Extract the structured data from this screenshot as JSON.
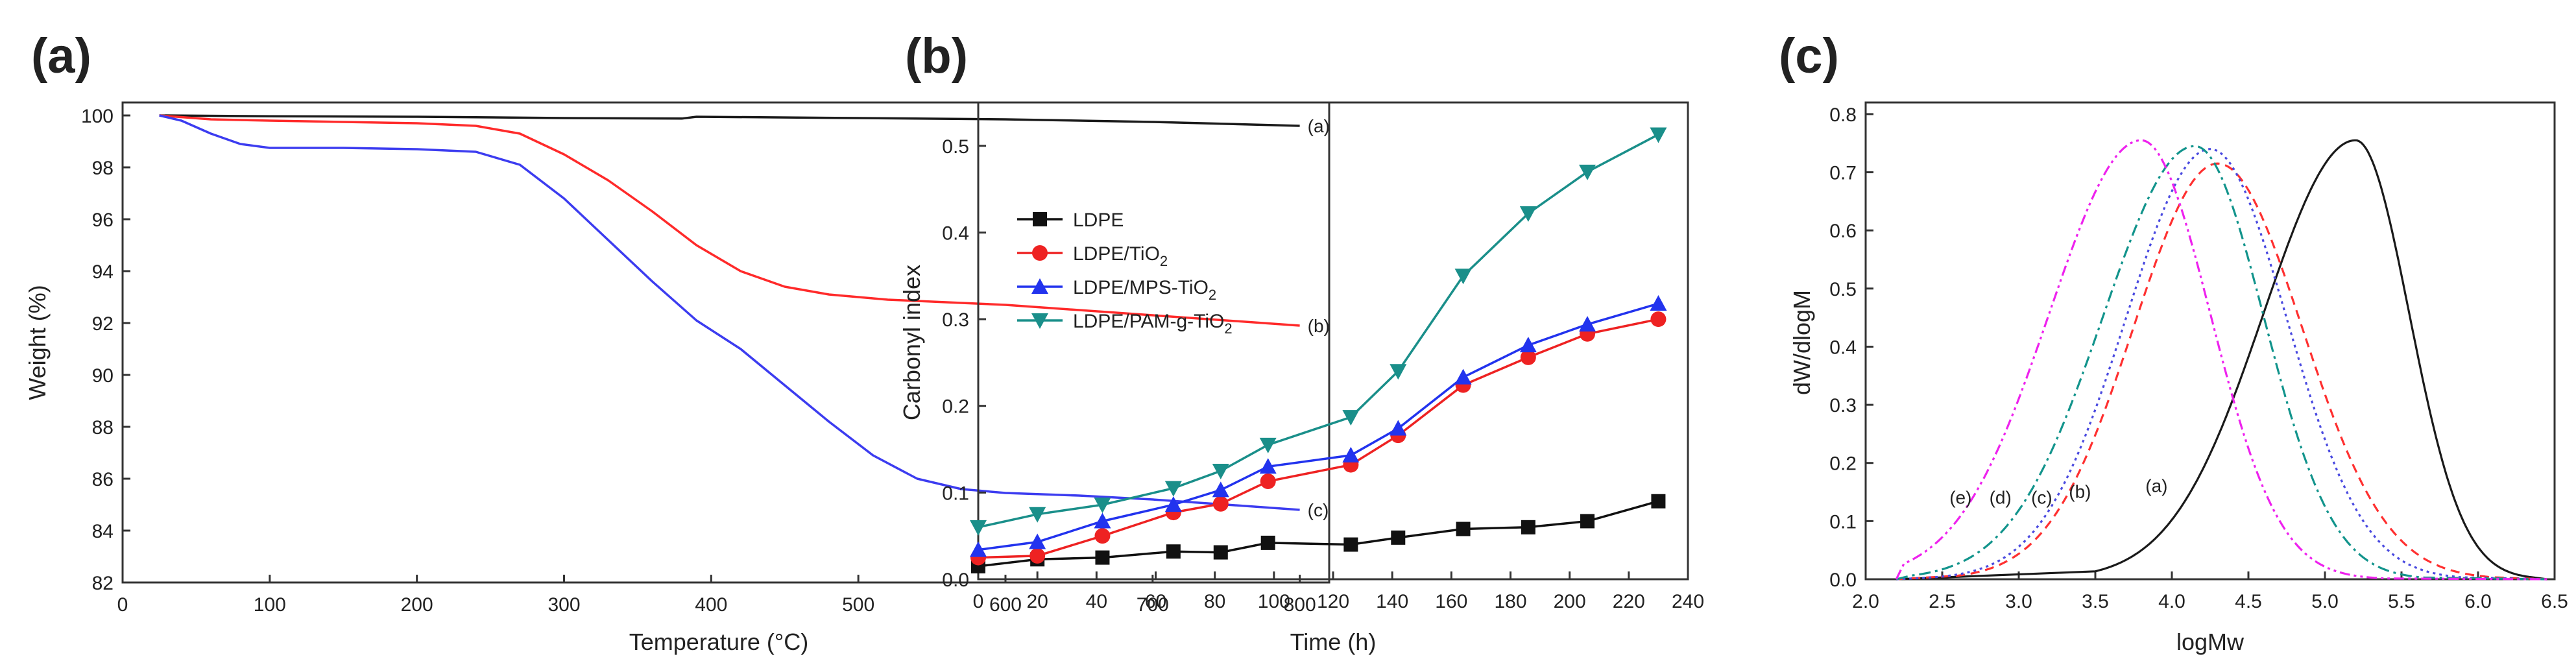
{
  "chart_data": [
    {
      "id": "a",
      "type": "line",
      "panel_label": "(a)",
      "xlabel": "Temperature (°C)",
      "ylabel": "Weight (%)",
      "xlim": [
        0,
        820
      ],
      "ylim": [
        82,
        100.5
      ],
      "xticks": [
        0,
        100,
        200,
        300,
        400,
        500,
        600,
        700,
        800
      ],
      "yticks": [
        82,
        84,
        86,
        88,
        90,
        92,
        94,
        96,
        98,
        100
      ],
      "series": [
        {
          "name": "(a)",
          "color": "#1a1a1a",
          "x": [
            25,
            100,
            200,
            300,
            380,
            390,
            500,
            600,
            700,
            800
          ],
          "y": [
            100,
            99.97,
            99.95,
            99.9,
            99.88,
            99.95,
            99.9,
            99.85,
            99.75,
            99.6
          ]
        },
        {
          "name": "(b)",
          "color": "#ff2a2a",
          "x": [
            25,
            60,
            100,
            150,
            200,
            240,
            270,
            300,
            330,
            360,
            390,
            420,
            450,
            480,
            520,
            560,
            600,
            700,
            800
          ],
          "y": [
            100,
            99.85,
            99.8,
            99.75,
            99.7,
            99.6,
            99.3,
            98.5,
            97.5,
            96.3,
            95.0,
            94.0,
            93.4,
            93.1,
            92.9,
            92.8,
            92.7,
            92.3,
            91.9
          ]
        },
        {
          "name": "(c)",
          "color": "#3c3cf0",
          "x": [
            25,
            40,
            60,
            80,
            100,
            150,
            200,
            240,
            270,
            300,
            330,
            360,
            390,
            420,
            450,
            480,
            510,
            540,
            570,
            600,
            650,
            700,
            750,
            800
          ],
          "y": [
            100,
            99.8,
            99.3,
            98.9,
            98.75,
            98.75,
            98.7,
            98.6,
            98.1,
            96.8,
            95.2,
            93.6,
            92.1,
            91.0,
            89.6,
            88.2,
            86.9,
            86.0,
            85.6,
            85.45,
            85.35,
            85.2,
            85.0,
            84.8
          ]
        }
      ]
    },
    {
      "id": "b",
      "type": "line",
      "panel_label": "(b)",
      "xlabel": "Time (h)",
      "ylabel": "Carbonyl index",
      "xlim": [
        0,
        240
      ],
      "ylim": [
        0,
        0.55
      ],
      "xticks": [
        0,
        20,
        40,
        60,
        80,
        100,
        120,
        140,
        160,
        180,
        200,
        220,
        240
      ],
      "yticks": [
        0.0,
        0.1,
        0.2,
        0.3,
        0.4,
        0.5
      ],
      "series": [
        {
          "name": "LDPE",
          "color": "#111111",
          "marker": "square",
          "x": [
            0,
            20,
            42,
            66,
            82,
            98,
            126,
            142,
            164,
            186,
            206,
            230
          ],
          "y": [
            0.015,
            0.023,
            0.025,
            0.032,
            0.031,
            0.042,
            0.04,
            0.048,
            0.058,
            0.06,
            0.067,
            0.09
          ]
        },
        {
          "name": "LDPE/TiO2",
          "color": "#ee2222",
          "marker": "circle",
          "x": [
            0,
            20,
            42,
            66,
            82,
            98,
            126,
            142,
            164,
            186,
            206,
            230
          ],
          "y": [
            0.025,
            0.027,
            0.05,
            0.077,
            0.087,
            0.113,
            0.132,
            0.166,
            0.224,
            0.256,
            0.283,
            0.3
          ]
        },
        {
          "name": "LDPE/MPS-TiO2",
          "color": "#2233ee",
          "marker": "triangle-up",
          "x": [
            0,
            20,
            42,
            66,
            82,
            98,
            126,
            142,
            164,
            186,
            206,
            230
          ],
          "y": [
            0.034,
            0.043,
            0.067,
            0.086,
            0.103,
            0.13,
            0.143,
            0.174,
            0.233,
            0.27,
            0.294,
            0.318
          ]
        },
        {
          "name": "LDPE/PAM-g-TiO2",
          "color": "#1a8f8a",
          "marker": "triangle-down",
          "x": [
            0,
            20,
            42,
            66,
            82,
            98,
            126,
            142,
            164,
            186,
            206,
            230
          ],
          "y": [
            0.06,
            0.075,
            0.086,
            0.105,
            0.125,
            0.155,
            0.187,
            0.24,
            0.35,
            0.422,
            0.47,
            0.513
          ]
        }
      ],
      "legend": [
        {
          "base": "LDPE",
          "sub": "",
          "suffix": ""
        },
        {
          "base": "LDPE/TiO",
          "sub": "2",
          "suffix": ""
        },
        {
          "base": "LDPE/MPS-TiO",
          "sub": "2",
          "suffix": ""
        },
        {
          "base": "LDPE/PAM-g-TiO",
          "sub": "2",
          "suffix": ""
        }
      ]
    },
    {
      "id": "c",
      "type": "line",
      "panel_label": "(c)",
      "xlabel": "logMw",
      "ylabel": "dW/dlogM",
      "xlim": [
        2.0,
        6.5
      ],
      "ylim": [
        0.0,
        0.82
      ],
      "xticks": [
        2.0,
        2.5,
        3.0,
        3.5,
        4.0,
        4.5,
        5.0,
        5.5,
        6.0,
        6.5
      ],
      "yticks": [
        0.0,
        0.1,
        0.2,
        0.3,
        0.4,
        0.5,
        0.6,
        0.7,
        0.8
      ],
      "series": [
        {
          "name": "(a)",
          "color": "#1a1a1a",
          "dash": "",
          "peak": 5.2,
          "height": 0.755,
          "sigma_left": 0.6,
          "sigma_right": 0.35,
          "x_start": 3.5,
          "x_end": 6.35
        },
        {
          "name": "(b)",
          "color": "#ff3030",
          "dash": "14,9",
          "peak": 4.3,
          "height": 0.715,
          "sigma_left": 0.55,
          "sigma_right": 0.55,
          "x_start": 2.6,
          "x_end": 6.1
        },
        {
          "name": "(c)",
          "color": "#4a4ae0",
          "dash": "4,6",
          "peak": 4.25,
          "height": 0.74,
          "sigma_left": 0.55,
          "sigma_right": 0.5,
          "x_start": 2.4,
          "x_end": 5.9
        },
        {
          "name": "(d)",
          "color": "#12948c",
          "dash": "18,7,4,7",
          "peak": 4.15,
          "height": 0.745,
          "sigma_left": 0.6,
          "sigma_right": 0.45,
          "x_start": 2.3,
          "x_end": 5.65
        },
        {
          "name": "(e)",
          "color": "#ee22ee",
          "dash": "16,6,4,6,4,6",
          "peak": 3.8,
          "height": 0.755,
          "sigma_left": 0.6,
          "sigma_right": 0.45,
          "x_start": 2.25,
          "x_end": 5.4
        }
      ],
      "curve_labels": [
        {
          "text": "(e)",
          "x": 2.62,
          "y": 0.13
        },
        {
          "text": "(d)",
          "x": 2.88,
          "y": 0.13
        },
        {
          "text": "(c)",
          "x": 3.15,
          "y": 0.13
        },
        {
          "text": "(b)",
          "x": 3.4,
          "y": 0.14
        },
        {
          "text": "(a)",
          "x": 3.9,
          "y": 0.15
        }
      ]
    }
  ]
}
